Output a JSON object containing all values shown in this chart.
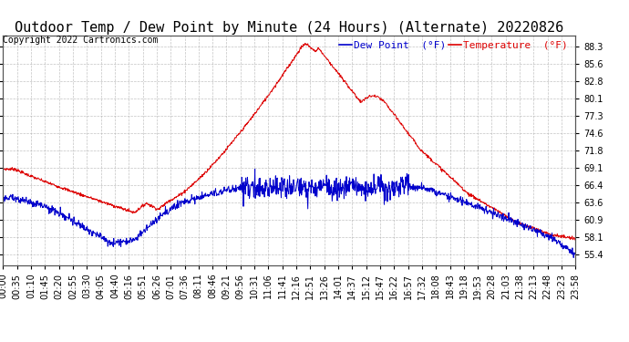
{
  "title": "Outdoor Temp / Dew Point by Minute (24 Hours) (Alternate) 20220826",
  "copyright": "Copyright 2022 Cartronics.com",
  "legend_dew": "Dew Point  (°F)",
  "legend_temp": "Temperature  (°F)",
  "yticks": [
    55.4,
    58.1,
    60.9,
    63.6,
    66.4,
    69.1,
    71.8,
    74.6,
    77.3,
    80.1,
    82.8,
    85.6,
    88.3
  ],
  "ymin": 53.67,
  "ymax": 90.03,
  "bg_color": "#ffffff",
  "grid_color": "#aaaaaa",
  "temp_color": "#dd0000",
  "dew_color": "#0000cc",
  "title_fontsize": 11,
  "axis_fontsize": 7,
  "copyright_fontsize": 7,
  "n_points": 1440,
  "xtick_labels": [
    "00:00",
    "00:35",
    "01:10",
    "01:45",
    "02:20",
    "02:55",
    "03:30",
    "04:05",
    "04:40",
    "05:16",
    "05:51",
    "06:26",
    "07:01",
    "07:36",
    "08:11",
    "08:46",
    "09:21",
    "09:56",
    "10:31",
    "11:06",
    "11:41",
    "12:16",
    "12:51",
    "13:26",
    "14:01",
    "14:37",
    "15:12",
    "15:47",
    "16:22",
    "16:57",
    "17:32",
    "18:08",
    "18:43",
    "19:18",
    "19:53",
    "20:28",
    "21:03",
    "21:38",
    "22:13",
    "22:48",
    "23:23",
    "23:58"
  ]
}
